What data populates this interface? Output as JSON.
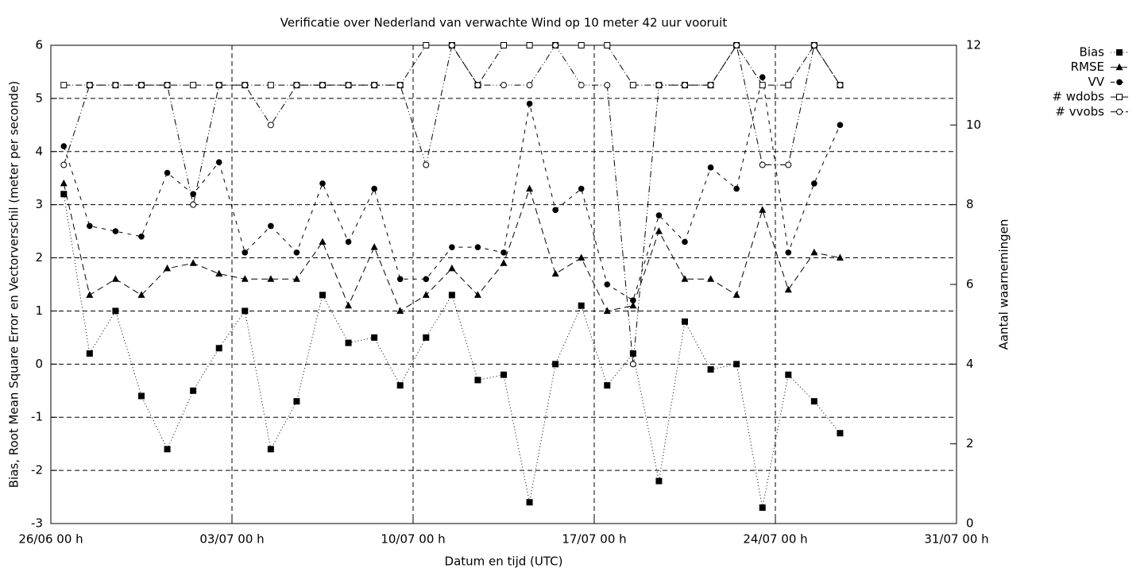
{
  "chart_data": {
    "type": "line",
    "title": "Verificatie over Nederland van verwachte Wind op 10 meter 42 uur vooruit",
    "x_label": "Datum en tijd (UTC)",
    "y_label": "Bias, Root Mean Square Error en Vectorverschil (meter per seconde)",
    "y2_label": "Aantal waarnemingen",
    "x": [
      0.5,
      1.5,
      2.5,
      3.5,
      4.5,
      5.5,
      6.5,
      7.5,
      8.5,
      9.5,
      10.5,
      11.5,
      12.5,
      13.5,
      14.5,
      15.5,
      16.5,
      17.5,
      18.5,
      19.5,
      20.5,
      21.5,
      22.5,
      23.5,
      24.5,
      25.5,
      26.5,
      27.5,
      28.5,
      29.5,
      30.5
    ],
    "xlim": [
      0,
      35
    ],
    "xticks": [
      {
        "value": 0,
        "label": "26/06 00 h"
      },
      {
        "value": 7,
        "label": "03/07 00 h"
      },
      {
        "value": 14,
        "label": "10/07 00 h"
      },
      {
        "value": 21,
        "label": "17/07 00 h"
      },
      {
        "value": 28,
        "label": "24/07 00 h"
      },
      {
        "value": 35,
        "label": "31/07 00 h"
      }
    ],
    "ylim": [
      -3,
      6
    ],
    "yticks": [
      -3,
      -2,
      -1,
      0,
      1,
      2,
      3,
      4,
      5,
      6
    ],
    "y2lim": [
      0,
      12
    ],
    "y2ticks": [
      0,
      2,
      4,
      6,
      8,
      10,
      12
    ],
    "grid": true,
    "legend": "top-right",
    "series": [
      {
        "name": "Bias",
        "color": "#000000",
        "marker": "square",
        "line": "dotted",
        "values": [
          3.2,
          0.2,
          1.0,
          -0.6,
          -1.6,
          -0.5,
          0.3,
          1.0,
          -1.6,
          -0.7,
          1.3,
          0.4,
          0.5,
          -0.4,
          0.5,
          1.3,
          -0.3,
          -0.2,
          -2.6,
          0.0,
          1.1,
          -0.4,
          0.2,
          -2.2,
          0.8,
          -0.1,
          0.0,
          -2.7,
          -0.2,
          -0.7,
          -1.3
        ]
      },
      {
        "name": "RMSE",
        "color": "#000000",
        "marker": "triangle",
        "line": "dashed",
        "values": [
          3.4,
          1.3,
          1.6,
          1.3,
          1.8,
          1.9,
          1.7,
          1.6,
          1.6,
          1.6,
          2.3,
          1.1,
          2.2,
          1.0,
          1.3,
          1.8,
          1.3,
          1.9,
          3.3,
          1.7,
          2.0,
          1.0,
          1.1,
          2.5,
          1.6,
          1.6,
          1.3,
          2.9,
          1.4,
          2.1,
          2.0
        ]
      },
      {
        "name": "VV",
        "color": "#000000",
        "marker": "circle",
        "line": "dash",
        "values": [
          4.1,
          2.6,
          2.5,
          2.4,
          3.6,
          3.2,
          3.8,
          2.1,
          2.6,
          2.1,
          3.4,
          2.3,
          3.3,
          1.6,
          1.6,
          2.2,
          2.2,
          2.1,
          4.9,
          2.9,
          3.3,
          1.5,
          1.2,
          2.8,
          2.3,
          3.7,
          3.3,
          5.4,
          2.1,
          3.4,
          4.5
        ]
      },
      {
        "name": "# wdobs",
        "color": "#000000",
        "marker": "open-square",
        "line": "dash-dot",
        "axis": "y2",
        "values": [
          11,
          11,
          11,
          11,
          11,
          11,
          11,
          11,
          11,
          11,
          11,
          11,
          11,
          11,
          12,
          12,
          11,
          12,
          12,
          12,
          12,
          12,
          11,
          11,
          11,
          11,
          12,
          11,
          11,
          12,
          11
        ]
      },
      {
        "name": "# vvobs",
        "color": "#000000",
        "marker": "open-circle",
        "line": "dash-dot-dot",
        "axis": "y2",
        "values": [
          9,
          11,
          11,
          11,
          11,
          8,
          11,
          11,
          10,
          11,
          11,
          11,
          11,
          11,
          9,
          12,
          11,
          11,
          11,
          12,
          11,
          11,
          4,
          11,
          11,
          11,
          12,
          9,
          9,
          12,
          11
        ]
      }
    ]
  }
}
